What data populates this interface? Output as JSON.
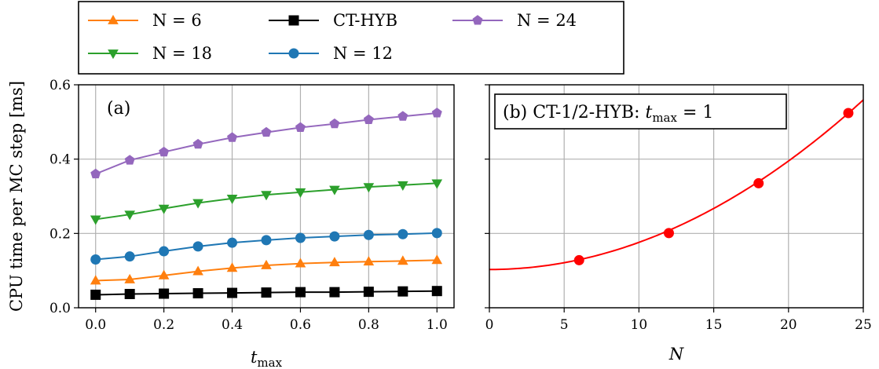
{
  "chart_data": [
    {
      "type": "line",
      "panel_label": "(a)",
      "xlabel": "t_max",
      "ylabel": "CPU time per MC step [ms]",
      "xlim": [
        -0.05,
        1.05
      ],
      "ylim": [
        0,
        0.6
      ],
      "xticks": [
        "0.0",
        "0.2",
        "0.4",
        "0.6",
        "0.8",
        "1.0"
      ],
      "yticks": [
        "0.0",
        "0.2",
        "0.4",
        "0.6"
      ],
      "grid": true,
      "x": [
        0.0,
        0.1,
        0.2,
        0.3,
        0.4,
        0.5,
        0.6,
        0.7,
        0.8,
        0.9,
        1.0
      ],
      "series": [
        {
          "name": "N = 6",
          "color": "#ff7f0e",
          "marker": "triangle-up",
          "values": [
            0.073,
            0.076,
            0.087,
            0.098,
            0.107,
            0.114,
            0.119,
            0.122,
            0.124,
            0.126,
            0.128
          ]
        },
        {
          "name": "N = 12",
          "color": "#1f77b4",
          "marker": "circle",
          "values": [
            0.13,
            0.138,
            0.152,
            0.165,
            0.175,
            0.182,
            0.188,
            0.192,
            0.196,
            0.198,
            0.201
          ]
        },
        {
          "name": "N = 18",
          "color": "#2ca02c",
          "marker": "triangle-down",
          "values": [
            0.238,
            0.251,
            0.267,
            0.282,
            0.294,
            0.304,
            0.311,
            0.318,
            0.325,
            0.33,
            0.335
          ]
        },
        {
          "name": "N = 24",
          "color": "#9467bd",
          "marker": "pentagon",
          "values": [
            0.36,
            0.397,
            0.419,
            0.44,
            0.458,
            0.472,
            0.485,
            0.495,
            0.506,
            0.515,
            0.524
          ]
        },
        {
          "name": "CT-HYB",
          "color": "#000000",
          "marker": "square",
          "values": [
            0.035,
            0.037,
            0.038,
            0.039,
            0.04,
            0.041,
            0.042,
            0.042,
            0.043,
            0.044,
            0.045
          ]
        }
      ]
    },
    {
      "type": "scatter",
      "panel_label": "(b) CT-1/2-HYB: t_max = 1",
      "xlabel": "N",
      "xlim": [
        0,
        25
      ],
      "ylim": [
        0,
        0.6
      ],
      "xticks": [
        "0",
        "5",
        "10",
        "15",
        "20",
        "25"
      ],
      "grid": true,
      "points": {
        "color": "#ff0000",
        "x": [
          6,
          12,
          18,
          24
        ],
        "y": [
          0.128,
          0.201,
          0.335,
          0.524
        ]
      },
      "fit": {
        "color": "#ff0000",
        "form": "quadratic",
        "a": 0.103,
        "b": 0.00073
      }
    }
  ]
}
